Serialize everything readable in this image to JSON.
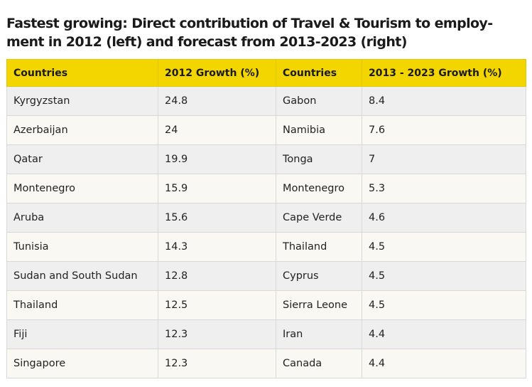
{
  "title": "Fastest growing: Direct contribution of Travel & Tourism to employ-ment in 2012 (left) and forecast from 2013-2023 (right)",
  "colors": {
    "header_bg": "#f3d500",
    "row_odd": "#efefef",
    "row_even": "#f9f8f3"
  },
  "chart_data": {
    "type": "table",
    "title": "Fastest growing: Direct contribution of Travel & Tourism to employ-ment in 2012 (left) and forecast from 2013-2023 (right)",
    "columns": [
      "Countries",
      "2012 Growth (%)",
      "Countries",
      "2013 - 2023 Growth (%)"
    ],
    "rows": [
      [
        "Kyrgyzstan",
        "24.8",
        "Gabon",
        "8.4"
      ],
      [
        "Azerbaijan",
        "24",
        "Namibia",
        "7.6"
      ],
      [
        "Qatar",
        "19.9",
        "Tonga",
        "7"
      ],
      [
        "Montenegro",
        "15.9",
        "Montenegro",
        "5.3"
      ],
      [
        "Aruba",
        "15.6",
        "Cape Verde",
        "4.6"
      ],
      [
        "Tunisia",
        "14.3",
        "Thailand",
        "4.5"
      ],
      [
        "Sudan and South Sudan",
        "12.8",
        "Cyprus",
        "4.5"
      ],
      [
        "Thailand",
        "12.5",
        "Sierra Leone",
        "4.5"
      ],
      [
        "Fiji",
        "12.3",
        "Iran",
        "4.4"
      ],
      [
        "Singapore",
        "12.3",
        "Canada",
        "4.4"
      ]
    ]
  }
}
